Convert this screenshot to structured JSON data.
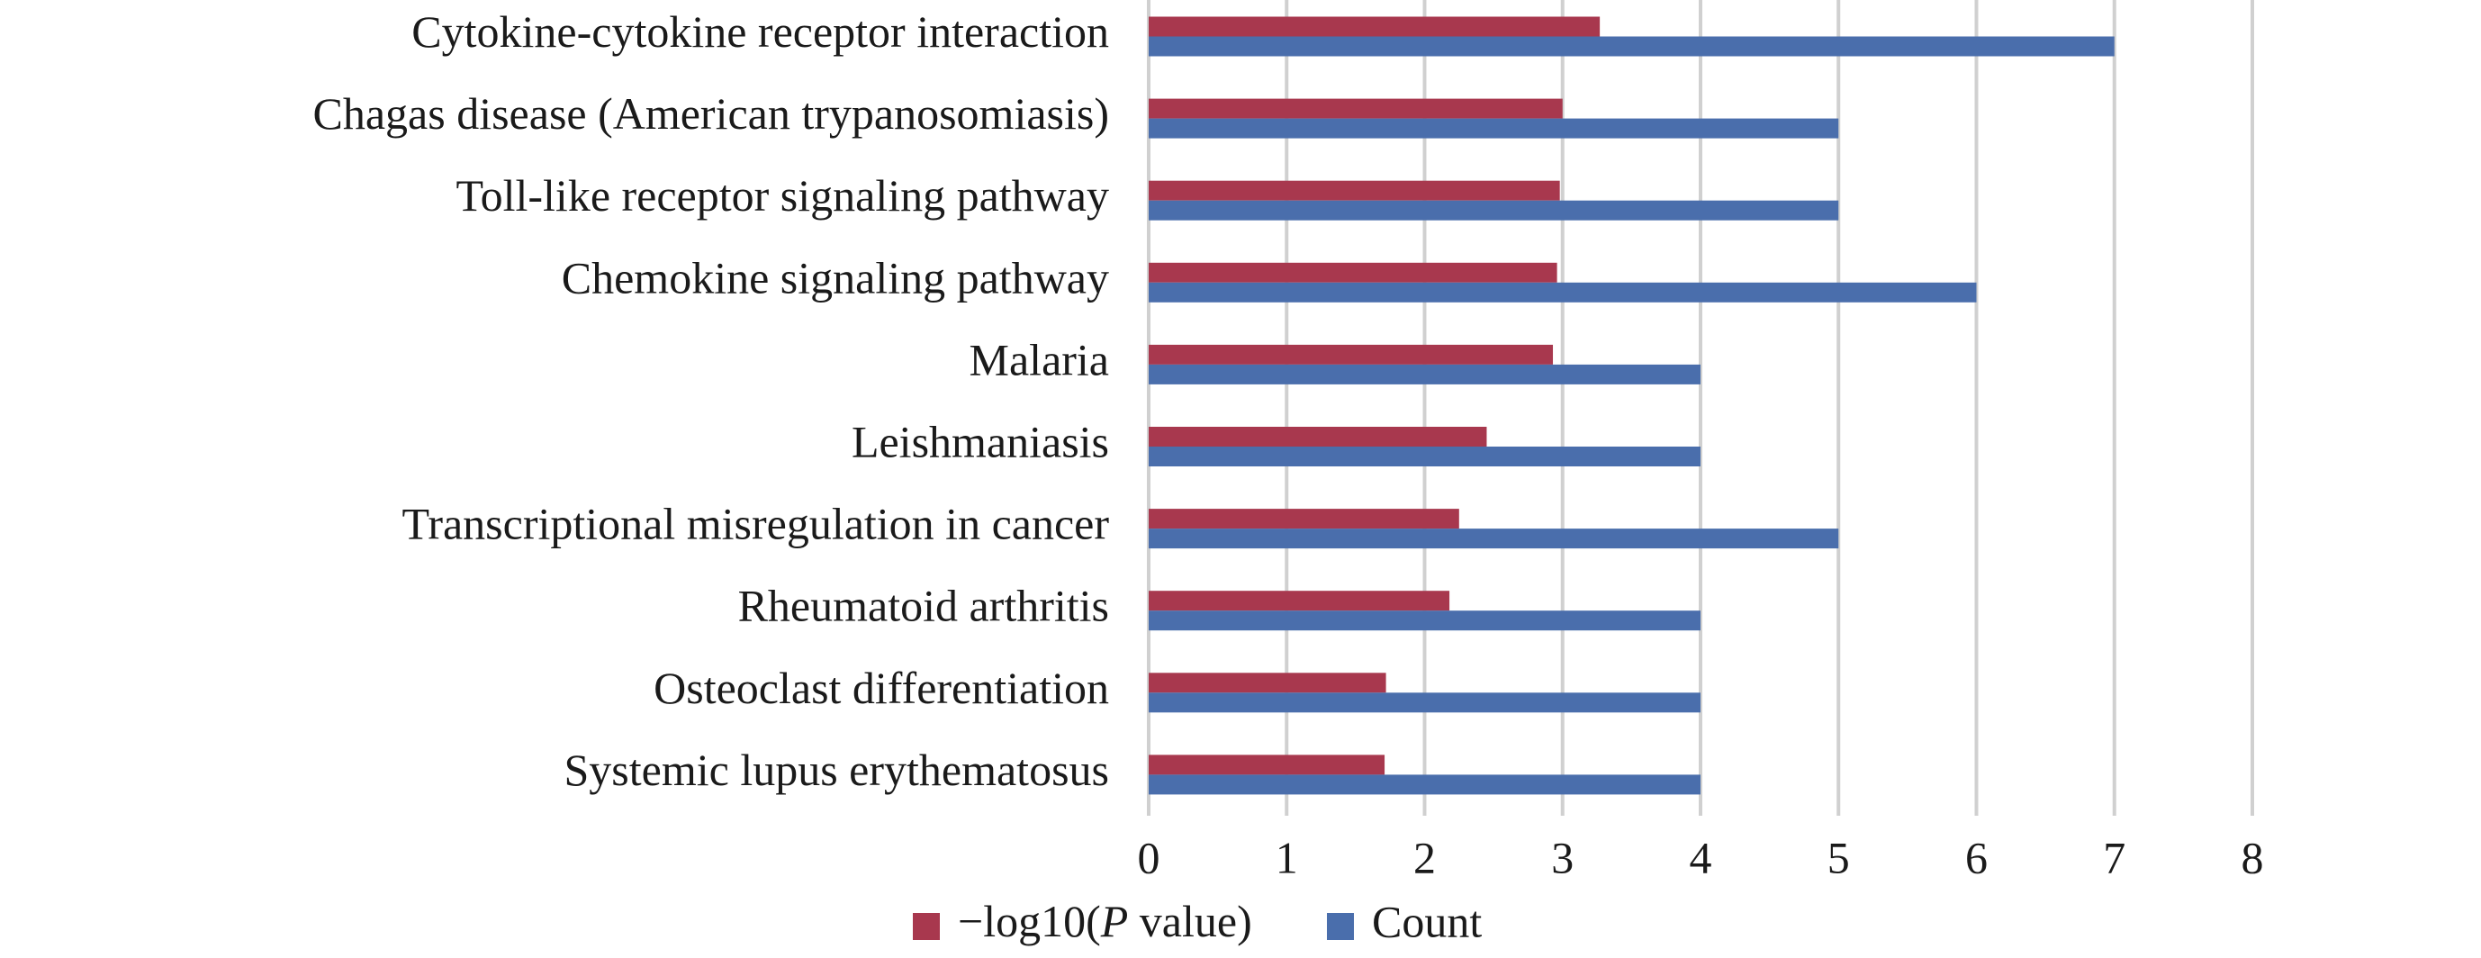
{
  "chart_data": {
    "type": "bar",
    "orientation": "horizontal",
    "categories": [
      "Cytokine-cytokine receptor interaction",
      "Chagas disease (American trypanosomiasis)",
      "Toll-like receptor signaling pathway",
      "Chemokine signaling pathway",
      "Malaria",
      "Leishmaniasis",
      "Transcriptional misregulation in cancer",
      "Rheumatoid arthritis",
      "Osteoclast differentiation",
      "Systemic lupus erythematosus"
    ],
    "series": [
      {
        "name_parts": [
          "−log10(",
          "P",
          " value)"
        ],
        "color": "#a8384e",
        "values": [
          3.27,
          3.0,
          2.98,
          2.96,
          2.93,
          2.45,
          2.25,
          2.18,
          1.72,
          1.71
        ]
      },
      {
        "name": "Count",
        "color": "#4a6eac",
        "values": [
          7,
          5,
          5,
          6,
          4,
          4,
          5,
          4,
          4,
          4
        ]
      }
    ],
    "xlim": [
      0,
      8
    ],
    "xticks": [
      "0",
      "1",
      "2",
      "3",
      "4",
      "5",
      "6",
      "7",
      "8"
    ],
    "grid": "vertical",
    "gridline_color": "#d0d0d0",
    "legend_position": "bottom-center"
  }
}
